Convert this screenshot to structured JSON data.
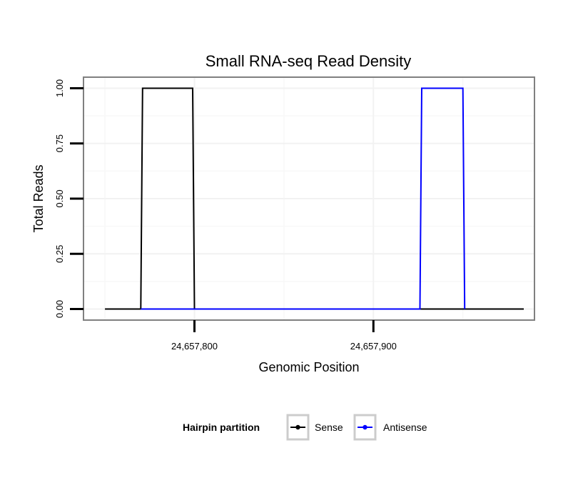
{
  "chart_data": {
    "type": "line",
    "title": "Small RNA-seq Read Density",
    "xlabel": "Genomic Position",
    "ylabel": "Total Reads",
    "xlim": [
      24657738,
      24657990
    ],
    "ylim": [
      -0.05,
      1.05
    ],
    "x_ticks": [
      24657800,
      24657900
    ],
    "x_tick_labels": [
      "24,657,800",
      "24,657,900"
    ],
    "y_ticks": [
      0,
      0.25,
      0.5,
      0.75,
      1.0
    ],
    "y_tick_labels": [
      "0.00",
      "0.25",
      "0.50",
      "0.75",
      "1.00"
    ],
    "grid": true,
    "legend": {
      "title": "Hairpin partition",
      "position": "bottom"
    },
    "series": [
      {
        "name": "Sense",
        "color": "#000000",
        "x": [
          24657750,
          24657770,
          24657771,
          24657799,
          24657800,
          24657926,
          24657927,
          24657950,
          24657951,
          24657984
        ],
        "y": [
          0,
          0,
          1,
          1,
          0,
          0,
          0,
          0,
          0,
          0
        ]
      },
      {
        "name": "Antisense",
        "color": "#0000ff",
        "x": [
          24657770,
          24657799,
          24657800,
          24657926,
          24657927,
          24657950,
          24657951
        ],
        "y": [
          0,
          0,
          0,
          0,
          1,
          1,
          0
        ]
      }
    ]
  }
}
